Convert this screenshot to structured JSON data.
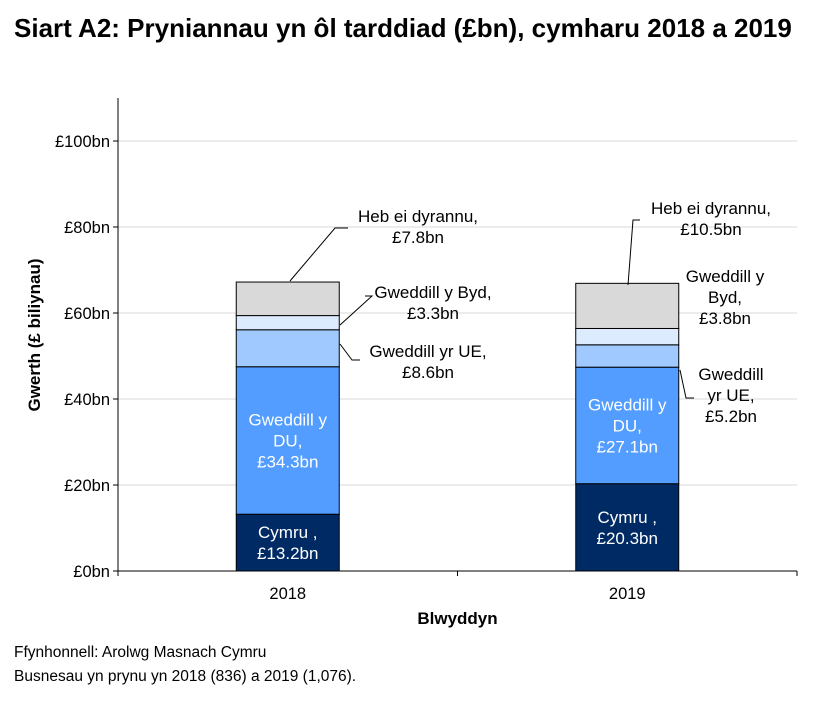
{
  "chart_data": {
    "type": "bar",
    "stacked": true,
    "title": "Siart A2: Pryniannau yn ôl tarddiad (£bn), cymharu 2018 a 2019",
    "xlabel": "Blwyddyn",
    "ylabel": "Gwerth (£ biliynau)",
    "ylim": [
      0,
      110
    ],
    "yticks": [
      0,
      20,
      40,
      60,
      80,
      100
    ],
    "ytick_labels": [
      "£0bn",
      "£20bn",
      "£40bn",
      "£60bn",
      "£80bn",
      "£100bn"
    ],
    "grid": true,
    "categories": [
      "2018",
      "2019"
    ],
    "series": [
      {
        "name": "Cymru",
        "color": "#002A64",
        "values": [
          13.2,
          20.3
        ],
        "labels": [
          [
            "Cymru ,",
            "£13.2bn"
          ],
          [
            "Cymru ,",
            "£20.3bn"
          ]
        ]
      },
      {
        "name": "Gweddill y DU",
        "color": "#529DFF",
        "values": [
          34.3,
          27.1
        ],
        "labels": [
          [
            "Gweddill y",
            "DU,",
            "£34.3bn"
          ],
          [
            "Gweddill y",
            "DU,",
            "£27.1bn"
          ]
        ]
      },
      {
        "name": "Gweddill yr UE",
        "color": "#A0CAFF",
        "values": [
          8.6,
          5.2
        ],
        "labels": [
          [
            "Gweddill yr UE,",
            "£8.6bn"
          ],
          [
            "Gweddill",
            "yr UE,",
            "£5.2bn"
          ]
        ]
      },
      {
        "name": "Gweddill y Byd",
        "color": "#DDEBFF",
        "values": [
          3.3,
          3.8
        ],
        "labels": [
          [
            "Gweddill y Byd,",
            "£3.3bn"
          ],
          [
            "Gweddill y",
            "Byd,",
            "£3.8bn"
          ]
        ]
      },
      {
        "name": "Heb ei dyrannu",
        "color": "#D9D9D9",
        "values": [
          7.8,
          10.5
        ],
        "labels": [
          [
            "Heb ei dyrannu,",
            "£7.8bn"
          ],
          [
            "Heb ei dyrannu,",
            "£10.5bn"
          ]
        ]
      }
    ]
  },
  "footer": {
    "source": "Ffynhonnell: Arolwg Masnach Cymru",
    "note": "Busnesau yn prynu yn 2018 (836) a 2019 (1,076)."
  }
}
